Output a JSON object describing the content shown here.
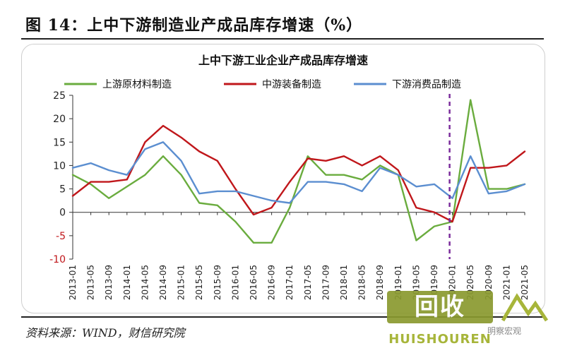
{
  "figure_title": "图 14：上中下游制造业产成品库存增速（%）",
  "source_note": "资料来源：WIND，财信研究院",
  "watermark": {
    "logo_text": "回收",
    "sub_text": "HUISHOUREN",
    "account": "明察宏观"
  },
  "colors": {
    "upstream": "#6aac3e",
    "midstream": "#c0171b",
    "downstream": "#5b8ed0",
    "marker": "#7b2c9c",
    "axis_red": "#c0171b"
  },
  "chart_data": {
    "type": "line",
    "title": "上中下游工业企业产成品库存增速",
    "xlabel": "",
    "ylabel": "",
    "ylim": [
      -10,
      25
    ],
    "yticks": [
      25,
      20,
      15,
      10,
      5,
      0,
      -5,
      -10
    ],
    "grid": false,
    "legend_position": "top",
    "vertical_marker_x": "2020-01",
    "x_tick_labels": [
      "2013-01",
      "2013-05",
      "2013-09",
      "2014-01",
      "2014-05",
      "2014-09",
      "2015-01",
      "2015-05",
      "2015-09",
      "2016-01",
      "2016-05",
      "2016-09",
      "2017-01",
      "2017-05",
      "2017-09",
      "2018-01",
      "2018-05",
      "2018-09",
      "2019-01",
      "2019-05",
      "2019-09",
      "2020-01",
      "2020-05",
      "2020-09",
      "2021-01",
      "2021-05"
    ],
    "x": [
      "2013-01",
      "2013-05",
      "2013-09",
      "2014-01",
      "2014-05",
      "2014-09",
      "2015-01",
      "2015-05",
      "2015-09",
      "2016-01",
      "2016-05",
      "2016-09",
      "2017-01",
      "2017-05",
      "2017-09",
      "2018-01",
      "2018-05",
      "2018-09",
      "2019-01",
      "2019-05",
      "2019-09",
      "2020-01",
      "2020-05",
      "2020-09",
      "2021-01",
      "2021-05"
    ],
    "series": [
      {
        "name": "上游原材料制造",
        "values": [
          8,
          6,
          3,
          5.5,
          8,
          12,
          8,
          2,
          1.5,
          -2,
          -6.5,
          -6.5,
          1,
          12,
          8,
          8,
          7,
          10,
          8,
          -6,
          -3,
          -2,
          24,
          5,
          5,
          6
        ]
      },
      {
        "name": "中游装备制造",
        "values": [
          3.5,
          6.5,
          6.5,
          7,
          15,
          18.5,
          16,
          13,
          11,
          5,
          -0.5,
          1,
          6.5,
          11.5,
          11,
          12,
          10,
          12,
          9,
          1,
          0,
          -2,
          9.5,
          9.5,
          10,
          13
        ]
      },
      {
        "name": "下游消费品制造",
        "values": [
          9.5,
          10.5,
          9,
          8,
          13.5,
          15,
          11,
          4,
          4.5,
          4.5,
          3.5,
          2.5,
          2,
          6.5,
          6.5,
          6,
          4.5,
          9.5,
          8,
          5.5,
          6,
          3,
          12,
          4,
          4.5,
          6
        ]
      }
    ]
  }
}
